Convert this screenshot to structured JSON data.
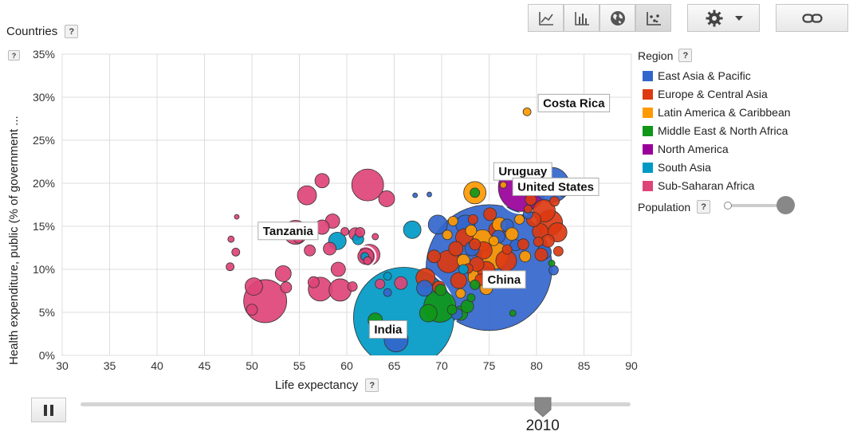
{
  "toolbar": {
    "buttons": [
      {
        "name": "line-chart-icon",
        "active": false
      },
      {
        "name": "bar-chart-icon",
        "active": false
      },
      {
        "name": "globe-map-icon",
        "active": false
      },
      {
        "name": "bubble-chart-icon",
        "active": true
      }
    ],
    "settings_icon": "gear-icon",
    "link_icon": "link-icon"
  },
  "countries_label": "Countries",
  "help_glyph": "?",
  "x_axis": {
    "label": "Life expectancy"
  },
  "y_axis": {
    "label": "Health expenditure, public (% of government ..."
  },
  "legend": {
    "title": "Region",
    "items": [
      {
        "label": "East Asia & Pacific",
        "color": "#3366cc"
      },
      {
        "label": "Europe & Central Asia",
        "color": "#dc3912"
      },
      {
        "label": "Latin America & Caribbean",
        "color": "#ff9900"
      },
      {
        "label": "Middle East & North Africa",
        "color": "#109618"
      },
      {
        "label": "North America",
        "color": "#990099"
      },
      {
        "label": "South Asia",
        "color": "#0099c6"
      },
      {
        "label": "Sub-Saharan Africa",
        "color": "#dd4477"
      }
    ]
  },
  "population_label": "Population",
  "time": {
    "year": "2010",
    "play_state": "pause-icon",
    "progress": 0.84
  },
  "chart_data": {
    "type": "scatter",
    "xlabel": "Life expectancy",
    "ylabel": "Health expenditure, public (% of government ...",
    "xlim": [
      30,
      90
    ],
    "ylim": [
      0,
      35
    ],
    "x_ticks": [
      "30",
      "35",
      "40",
      "45",
      "50",
      "55",
      "60",
      "65",
      "70",
      "75",
      "80",
      "85",
      "90"
    ],
    "y_ticks": [
      "0%",
      "5%",
      "10%",
      "15%",
      "20%",
      "25%",
      "30%",
      "35%"
    ],
    "grid": true,
    "legend_position": "right",
    "size_variable": "Population",
    "labeled_points": [
      {
        "label": "Costa Rica",
        "x": 79,
        "y": 28.3,
        "r": 5,
        "region": 2
      },
      {
        "label": "Uruguay",
        "x": 76.5,
        "y": 19.8,
        "r": 4,
        "region": 2
      },
      {
        "label": "United States",
        "x": 78.5,
        "y": 19.5,
        "r": 30,
        "region": 4
      },
      {
        "label": "Tanzania",
        "x": 62,
        "y": 11.5,
        "r": 10,
        "region": 6
      },
      {
        "label": "China",
        "x": 75,
        "y": 10.2,
        "r": 79,
        "region": 0
      },
      {
        "label": "India",
        "x": 66,
        "y": 4.4,
        "r": 63,
        "region": 5
      }
    ],
    "points": [
      {
        "x": 81.6,
        "y": 19.8,
        "r": 22,
        "region": 0
      },
      {
        "x": 82.8,
        "y": 19.4,
        "r": 10,
        "region": 0
      },
      {
        "x": 67.2,
        "y": 18.6,
        "r": 3,
        "region": 0
      },
      {
        "x": 68.7,
        "y": 18.7,
        "r": 3,
        "region": 0
      },
      {
        "x": 72.5,
        "y": 15.2,
        "r": 12,
        "region": 0
      },
      {
        "x": 76.9,
        "y": 15.1,
        "r": 8,
        "region": 0
      },
      {
        "x": 80.8,
        "y": 12.0,
        "r": 9,
        "region": 0
      },
      {
        "x": 81.8,
        "y": 9.9,
        "r": 6,
        "region": 0
      },
      {
        "x": 65.2,
        "y": 1.8,
        "r": 15,
        "region": 0
      },
      {
        "x": 68.2,
        "y": 7.8,
        "r": 10,
        "region": 0
      },
      {
        "x": 71.6,
        "y": 4.8,
        "r": 7,
        "region": 0
      },
      {
        "x": 64.3,
        "y": 7.3,
        "r": 5,
        "region": 0
      },
      {
        "x": 77.8,
        "y": 12.8,
        "r": 7,
        "region": 0
      },
      {
        "x": 79.1,
        "y": 16.4,
        "r": 6,
        "region": 0
      },
      {
        "x": 76.0,
        "y": 13.8,
        "r": 8,
        "region": 0
      },
      {
        "x": 69.6,
        "y": 15.2,
        "r": 12,
        "region": 0
      },
      {
        "x": 73.2,
        "y": 12.4,
        "r": 9,
        "region": 0
      },
      {
        "x": 80.8,
        "y": 16.8,
        "r": 14,
        "region": 1
      },
      {
        "x": 81.4,
        "y": 15.4,
        "r": 16,
        "region": 1
      },
      {
        "x": 82.2,
        "y": 14.3,
        "r": 12,
        "region": 1
      },
      {
        "x": 80.4,
        "y": 14.4,
        "r": 10,
        "region": 1
      },
      {
        "x": 79.7,
        "y": 15.8,
        "r": 9,
        "region": 1
      },
      {
        "x": 81.2,
        "y": 13.3,
        "r": 8,
        "region": 1
      },
      {
        "x": 79.4,
        "y": 18.1,
        "r": 7,
        "region": 1
      },
      {
        "x": 80.1,
        "y": 19.8,
        "r": 6,
        "region": 1
      },
      {
        "x": 81.9,
        "y": 17.9,
        "r": 6,
        "region": 1
      },
      {
        "x": 80.5,
        "y": 11.7,
        "r": 8,
        "region": 1
      },
      {
        "x": 80.2,
        "y": 13.2,
        "r": 6,
        "region": 1
      },
      {
        "x": 78.6,
        "y": 12.9,
        "r": 7,
        "region": 1
      },
      {
        "x": 79.1,
        "y": 17.0,
        "r": 5,
        "region": 1
      },
      {
        "x": 82.3,
        "y": 12.1,
        "r": 6,
        "region": 1
      },
      {
        "x": 75.8,
        "y": 14.6,
        "r": 10,
        "region": 1
      },
      {
        "x": 76.8,
        "y": 11.0,
        "r": 13,
        "region": 1
      },
      {
        "x": 74.4,
        "y": 12.2,
        "r": 11,
        "region": 1
      },
      {
        "x": 74.7,
        "y": 9.9,
        "r": 11,
        "region": 1
      },
      {
        "x": 73.5,
        "y": 12.9,
        "r": 7,
        "region": 1
      },
      {
        "x": 75.1,
        "y": 16.4,
        "r": 8,
        "region": 1
      },
      {
        "x": 73.7,
        "y": 10.6,
        "r": 9,
        "region": 1
      },
      {
        "x": 70.7,
        "y": 10.9,
        "r": 14,
        "region": 1
      },
      {
        "x": 72.4,
        "y": 13.7,
        "r": 11,
        "region": 1
      },
      {
        "x": 71.5,
        "y": 12.4,
        "r": 9,
        "region": 1
      },
      {
        "x": 69.2,
        "y": 11.5,
        "r": 8,
        "region": 1
      },
      {
        "x": 71.8,
        "y": 8.7,
        "r": 10,
        "region": 1
      },
      {
        "x": 68.3,
        "y": 9.0,
        "r": 12,
        "region": 1
      },
      {
        "x": 69.7,
        "y": 7.9,
        "r": 8,
        "region": 1
      },
      {
        "x": 72.8,
        "y": 10.1,
        "r": 6,
        "region": 1
      },
      {
        "x": 74.1,
        "y": 8.8,
        "r": 7,
        "region": 1
      },
      {
        "x": 76.9,
        "y": 12.3,
        "r": 6,
        "region": 1
      },
      {
        "x": 73.3,
        "y": 15.8,
        "r": 6,
        "region": 1
      },
      {
        "x": 73.5,
        "y": 18.9,
        "r": 14,
        "region": 2
      },
      {
        "x": 74.3,
        "y": 13.4,
        "r": 13,
        "region": 2
      },
      {
        "x": 75.6,
        "y": 11.6,
        "r": 17,
        "region": 2
      },
      {
        "x": 73.8,
        "y": 9.1,
        "r": 12,
        "region": 2
      },
      {
        "x": 76.1,
        "y": 15.2,
        "r": 9,
        "region": 2
      },
      {
        "x": 72.3,
        "y": 11.0,
        "r": 8,
        "region": 2
      },
      {
        "x": 74.7,
        "y": 7.8,
        "r": 8,
        "region": 2
      },
      {
        "x": 77.4,
        "y": 14.1,
        "r": 8,
        "region": 2
      },
      {
        "x": 78.8,
        "y": 11.5,
        "r": 7,
        "region": 2
      },
      {
        "x": 76.9,
        "y": 9.0,
        "r": 8,
        "region": 2
      },
      {
        "x": 73.1,
        "y": 14.5,
        "r": 7,
        "region": 2
      },
      {
        "x": 70.6,
        "y": 14.0,
        "r": 6,
        "region": 2
      },
      {
        "x": 72.0,
        "y": 7.2,
        "r": 6,
        "region": 2
      },
      {
        "x": 71.2,
        "y": 15.6,
        "r": 6,
        "region": 2
      },
      {
        "x": 78.2,
        "y": 15.8,
        "r": 6,
        "region": 2
      },
      {
        "x": 75.5,
        "y": 13.3,
        "r": 6,
        "region": 2
      },
      {
        "x": 69.8,
        "y": 5.7,
        "r": 20,
        "region": 3
      },
      {
        "x": 73.5,
        "y": 18.9,
        "r": 6,
        "region": 3
      },
      {
        "x": 68.6,
        "y": 4.9,
        "r": 11,
        "region": 3
      },
      {
        "x": 72.0,
        "y": 4.9,
        "r": 9,
        "region": 3
      },
      {
        "x": 72.7,
        "y": 5.7,
        "r": 8,
        "region": 3
      },
      {
        "x": 73.5,
        "y": 8.2,
        "r": 6,
        "region": 3
      },
      {
        "x": 69.9,
        "y": 7.6,
        "r": 7,
        "region": 3
      },
      {
        "x": 71.1,
        "y": 5.3,
        "r": 6,
        "region": 3
      },
      {
        "x": 77.5,
        "y": 4.9,
        "r": 4,
        "region": 3
      },
      {
        "x": 73.1,
        "y": 6.7,
        "r": 5,
        "region": 3
      },
      {
        "x": 81.6,
        "y": 10.7,
        "r": 4,
        "region": 3
      },
      {
        "x": 63.0,
        "y": 4.1,
        "r": 9,
        "region": 3
      },
      {
        "x": 66.9,
        "y": 14.6,
        "r": 11,
        "region": 5
      },
      {
        "x": 59.0,
        "y": 13.3,
        "r": 11,
        "region": 5
      },
      {
        "x": 61.2,
        "y": 13.5,
        "r": 7,
        "region": 5
      },
      {
        "x": 61.9,
        "y": 11.5,
        "r": 5,
        "region": 5
      },
      {
        "x": 72.3,
        "y": 10.0,
        "r": 6,
        "region": 5
      },
      {
        "x": 64.3,
        "y": 9.2,
        "r": 5,
        "region": 5
      },
      {
        "x": 51.4,
        "y": 6.3,
        "r": 27,
        "region": 6
      },
      {
        "x": 62.2,
        "y": 19.8,
        "r": 20,
        "region": 6
      },
      {
        "x": 57.2,
        "y": 7.7,
        "r": 15,
        "region": 6
      },
      {
        "x": 54.6,
        "y": 14.3,
        "r": 15,
        "region": 6
      },
      {
        "x": 59.3,
        "y": 7.6,
        "r": 14,
        "region": 6
      },
      {
        "x": 55.8,
        "y": 18.6,
        "r": 12,
        "region": 6
      },
      {
        "x": 50.2,
        "y": 8.0,
        "r": 11,
        "region": 6
      },
      {
        "x": 53.3,
        "y": 9.5,
        "r": 10,
        "region": 6
      },
      {
        "x": 58.5,
        "y": 15.6,
        "r": 9,
        "region": 6
      },
      {
        "x": 57.4,
        "y": 14.9,
        "r": 9,
        "region": 6
      },
      {
        "x": 64.2,
        "y": 18.2,
        "r": 10,
        "region": 6
      },
      {
        "x": 60.9,
        "y": 14.1,
        "r": 8,
        "region": 6
      },
      {
        "x": 56.1,
        "y": 12.2,
        "r": 7,
        "region": 6
      },
      {
        "x": 59.1,
        "y": 10.0,
        "r": 9,
        "region": 6
      },
      {
        "x": 57.4,
        "y": 20.3,
        "r": 9,
        "region": 6
      },
      {
        "x": 54.9,
        "y": 13.6,
        "r": 6,
        "region": 6
      },
      {
        "x": 53.6,
        "y": 7.9,
        "r": 7,
        "region": 6
      },
      {
        "x": 50.0,
        "y": 5.3,
        "r": 7,
        "region": 6
      },
      {
        "x": 58.2,
        "y": 12.4,
        "r": 8,
        "region": 6
      },
      {
        "x": 61.4,
        "y": 14.3,
        "r": 6,
        "region": 6
      },
      {
        "x": 62.4,
        "y": 11.7,
        "r": 13,
        "region": 6
      },
      {
        "x": 47.8,
        "y": 13.5,
        "r": 4,
        "region": 6
      },
      {
        "x": 47.7,
        "y": 10.3,
        "r": 5,
        "region": 6
      },
      {
        "x": 48.3,
        "y": 12.0,
        "r": 5,
        "region": 6
      },
      {
        "x": 48.4,
        "y": 16.1,
        "r": 3,
        "region": 6
      },
      {
        "x": 63.0,
        "y": 13.8,
        "r": 4,
        "region": 6
      },
      {
        "x": 56.5,
        "y": 8.5,
        "r": 7,
        "region": 6
      },
      {
        "x": 63.5,
        "y": 8.3,
        "r": 6,
        "region": 6
      },
      {
        "x": 65.7,
        "y": 8.4,
        "r": 8,
        "region": 6
      },
      {
        "x": 60.6,
        "y": 8.0,
        "r": 6,
        "region": 6
      },
      {
        "x": 62.2,
        "y": 11.0,
        "r": 5,
        "region": 6
      },
      {
        "x": 59.8,
        "y": 14.4,
        "r": 5,
        "region": 6
      }
    ]
  }
}
